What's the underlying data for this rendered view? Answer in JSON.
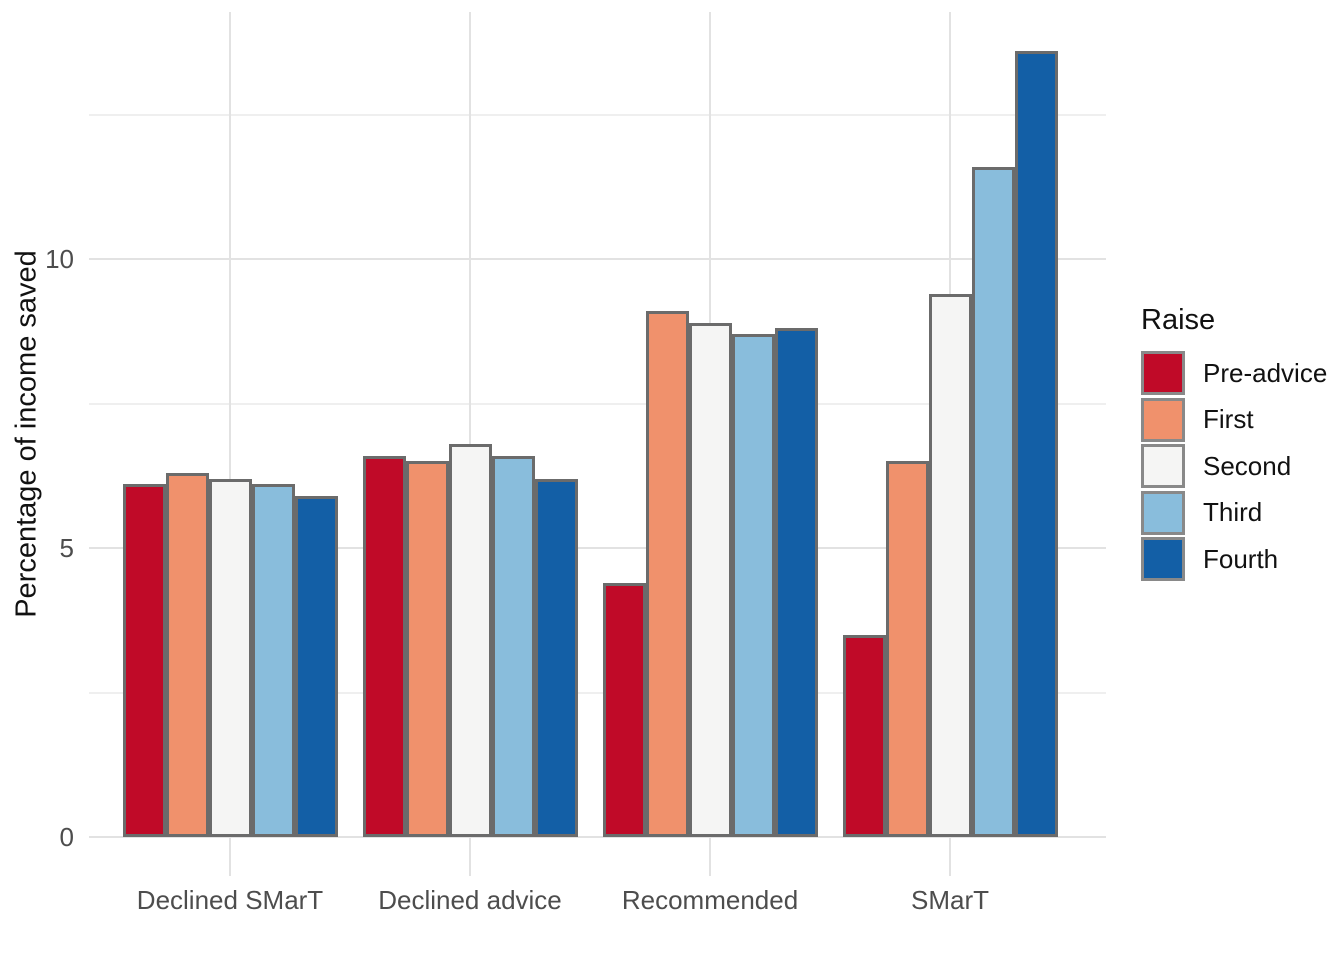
{
  "chart_data": {
    "type": "bar",
    "title": "",
    "xlabel": "",
    "ylabel": "Percentage of income saved",
    "categories": [
      "Declined SMarT",
      "Declined advice",
      "Recommended",
      "SMarT"
    ],
    "series": [
      {
        "name": "Pre-advice",
        "color": "#c00a28",
        "values": [
          6.1,
          6.6,
          4.4,
          3.5
        ]
      },
      {
        "name": "First",
        "color": "#f0916c",
        "values": [
          6.3,
          6.5,
          9.1,
          6.5
        ]
      },
      {
        "name": "Second",
        "color": "#f5f5f4",
        "values": [
          6.2,
          6.8,
          8.9,
          9.4
        ]
      },
      {
        "name": "Third",
        "color": "#89bddc",
        "values": [
          6.1,
          6.6,
          8.7,
          11.6
        ]
      },
      {
        "name": "Fourth",
        "color": "#135fa6",
        "values": [
          5.9,
          6.2,
          8.8,
          13.6
        ]
      }
    ],
    "y_major_ticks": [
      0,
      5,
      10
    ],
    "y_minor_ticks": [
      2.5,
      7.5,
      12.5
    ],
    "ylim": [
      -0.7,
      14.3
    ],
    "grid": true,
    "legend_title": "Raise",
    "legend_position": "right",
    "bar_border_color": "#6b6b6b",
    "grid_major_color": "#e2e2e2",
    "grid_minor_color": "#efefef",
    "axis_text_color": "#4d4d4d",
    "background_color": "#ffffff"
  }
}
